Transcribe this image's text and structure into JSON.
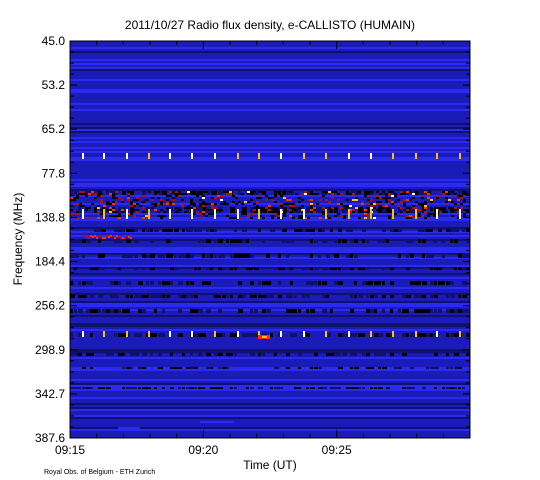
{
  "chart_data": {
    "type": "heatmap",
    "title": "2011/10/27  Radio flux density, e-CALLISTO (HUMAIN)",
    "xlabel": "Time (UT)",
    "ylabel": "Frequency (MHz)",
    "x_ticks": [
      "09:15",
      "09:20",
      "09:25"
    ],
    "y_ticks": [
      "45.0",
      "53.2",
      "65.2",
      "77.8",
      "138.8",
      "184.4",
      "256.2",
      "298.9",
      "342.7",
      "387.6"
    ],
    "ylim": [
      45.0,
      387.6
    ],
    "colormap": [
      "#000000",
      "#10106e",
      "#1b1bb8",
      "#2a2af0",
      "#b01010",
      "#ff3000",
      "#ffc000",
      "#ffffff"
    ]
  },
  "credit": "Royal Obs. of Belgium - ETH Zurich"
}
